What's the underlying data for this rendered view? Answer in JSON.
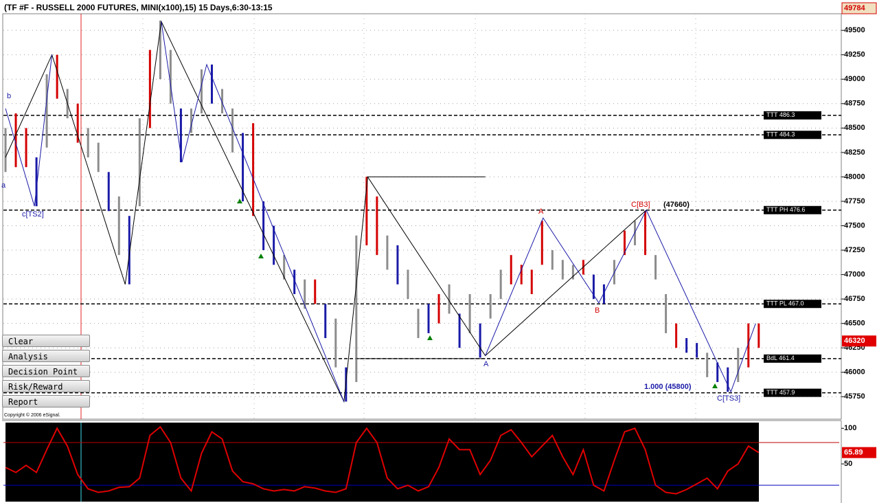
{
  "header": {
    "title": "(TF #F - RUSSELL 2000 FUTURES, MINI(x100),15) 15 Days,6:30-13:15",
    "copyright": "Copyright © 2006 eSignal."
  },
  "buttons": [
    "Clear",
    "Analysis",
    "Decision Point",
    "Risk/Reward",
    "Report"
  ],
  "chart_data": [
    {
      "type": "ohlc",
      "high": [
        48500,
        48650,
        48500,
        48200,
        49050,
        49250,
        48900,
        48750,
        48500,
        48350,
        48050,
        47800,
        47600,
        48600,
        49300,
        49600,
        49300,
        48700,
        48700,
        49100,
        49150,
        48900,
        48700,
        48450,
        48550,
        47750,
        47500,
        47200,
        47050,
        46950,
        46950,
        46700,
        46550,
        46050,
        47400,
        48000,
        47800,
        47400,
        47300,
        47050,
        46650,
        46700,
        46800,
        46900,
        46600,
        46800,
        46500,
        46800,
        47050,
        47200,
        47100,
        47050,
        47550,
        47250,
        47150,
        47100,
        47150,
        47000,
        46900,
        47150,
        47450,
        47550,
        47650,
        47200,
        46800,
        46500,
        46350,
        46300,
        46200,
        46100,
        46050,
        46250,
        46500,
        46500
      ],
      "low": [
        48050,
        48100,
        48100,
        47700,
        48300,
        48800,
        48600,
        48350,
        48200,
        48050,
        47650,
        47200,
        46900,
        47700,
        48500,
        49000,
        48750,
        48150,
        48450,
        48650,
        48750,
        48650,
        48250,
        47750,
        47600,
        47250,
        47100,
        46950,
        46800,
        46650,
        46700,
        46350,
        46050,
        45700,
        45900,
        47300,
        47200,
        47050,
        46900,
        46750,
        46350,
        46400,
        46500,
        46600,
        46250,
        46400,
        46150,
        46550,
        46750,
        46900,
        46900,
        46800,
        47100,
        47050,
        46950,
        46950,
        47000,
        46750,
        46700,
        46900,
        47200,
        47300,
        47200,
        46950,
        46400,
        46250,
        46200,
        46150,
        45950,
        45900,
        45800,
        45900,
        46050,
        46250
      ],
      "colors": [
        "#8c8c8c",
        "#d40000",
        "#d40000",
        "#1a1aa8",
        "#8c8c8c",
        "#d40000",
        "#8c8c8c",
        "#d40000",
        "#8c8c8c",
        "#8c8c8c",
        "#1a1aa8",
        "#8c8c8c",
        "#1a1aa8",
        "#8c8c8c",
        "#d40000",
        "#8c8c8c",
        "#8c8c8c",
        "#1a1aa8",
        "#8c8c8c",
        "#8c8c8c",
        "#1a1aa8",
        "#8c8c8c",
        "#8c8c8c",
        "#1a1aa8",
        "#d40000",
        "#1a1aa8",
        "#1a1aa8",
        "#8c8c8c",
        "#1a1aa8",
        "#8c8c8c",
        "#d40000",
        "#1a1aa8",
        "#8c8c8c",
        "#1a1aa8",
        "#8c8c8c",
        "#d40000",
        "#d40000",
        "#8c8c8c",
        "#1a1aa8",
        "#8c8c8c",
        "#8c8c8c",
        "#1a1aa8",
        "#d40000",
        "#8c8c8c",
        "#1a1aa8",
        "#8c8c8c",
        "#1a1aa8",
        "#8c8c8c",
        "#8c8c8c",
        "#d40000",
        "#d40000",
        "#d40000",
        "#d40000",
        "#8c8c8c",
        "#8c8c8c",
        "#8c8c8c",
        "#d40000",
        "#1a1aa8",
        "#1a1aa8",
        "#8c8c8c",
        "#d40000",
        "#8c8c8c",
        "#d40000",
        "#8c8c8c",
        "#8c8c8c",
        "#d40000",
        "#1a1aa8",
        "#1a1aa8",
        "#8c8c8c",
        "#1a1aa8",
        "#1a1aa8",
        "#8c8c8c",
        "#d40000",
        "#d40000"
      ],
      "xlim": [
        -0.2,
        81
      ],
      "ylim": [
        45520,
        49670
      ],
      "yticks": [
        45750,
        46000,
        46250,
        46500,
        46750,
        47000,
        47250,
        47500,
        47750,
        48000,
        48250,
        48500,
        48750,
        49000,
        49250,
        49500
      ],
      "grid": true,
      "lines": [
        {
          "color": "#000000",
          "points": [
            [
              0,
              48200
            ],
            [
              4.5,
              49250
            ],
            [
              11.6,
              46900
            ],
            [
              15.1,
              49590
            ],
            [
              32.8,
              45700
            ],
            [
              35.1,
              48000
            ],
            [
              46.5,
              46170
            ],
            [
              62.1,
              47660
            ]
          ]
        },
        {
          "color": "#000000",
          "points": [
            [
              35.1,
              48000
            ],
            [
              46.5,
              48000
            ]
          ]
        },
        {
          "color": "#000000",
          "points": [
            [
              34,
              46140
            ],
            [
              46.5,
              46140
            ]
          ]
        },
        {
          "color": "#1a1aa8",
          "points": [
            [
              0,
              48700
            ],
            [
              2.8,
              47700
            ],
            [
              4.5,
              49250
            ]
          ]
        },
        {
          "color": "#1a1aa8",
          "points": [
            [
              15.1,
              49590
            ],
            [
              17.1,
              48150
            ],
            [
              19.5,
              49150
            ],
            [
              32.8,
              45700
            ]
          ]
        },
        {
          "color": "#1a1aa8",
          "points": [
            [
              46.5,
              46170
            ],
            [
              52.1,
              47580
            ],
            [
              57.5,
              46710
            ],
            [
              62.1,
              47660
            ],
            [
              70.3,
              45800
            ],
            [
              72.7,
              46500
            ]
          ]
        }
      ],
      "levels": [
        {
          "value": 48630,
          "label": "TTT 486.3"
        },
        {
          "value": 48430,
          "label": "TTT 484.3"
        },
        {
          "value": 47660,
          "label": "TTT PH 476.6"
        },
        {
          "value": 46700,
          "label": "TTT PL 467.0"
        },
        {
          "value": 46140,
          "label": "BdL 461.4"
        },
        {
          "value": 45790,
          "label": "TTT 457.9"
        }
      ],
      "annotations": [
        "b",
        "a",
        "c[TS2]",
        "A",
        "A",
        "B",
        "C[B3]",
        "(47660)",
        "1.000 (45800)",
        "C[TS3]"
      ],
      "top_price": 49784,
      "last_price": 46320
    },
    {
      "type": "line",
      "values": [
        45,
        38,
        48,
        38,
        70,
        100,
        75,
        35,
        15,
        10,
        12,
        17,
        18,
        30,
        90,
        102,
        80,
        30,
        12,
        65,
        95,
        85,
        40,
        25,
        22,
        15,
        12,
        14,
        12,
        18,
        16,
        12,
        10,
        15,
        80,
        100,
        80,
        30,
        15,
        20,
        12,
        18,
        45,
        85,
        70,
        70,
        35,
        55,
        90,
        98,
        80,
        60,
        75,
        90,
        60,
        35,
        70,
        20,
        12,
        55,
        95,
        100,
        70,
        20,
        10,
        8,
        14,
        22,
        30,
        15,
        40,
        50,
        75,
        65.89
      ],
      "color": "#e00000",
      "ylim": [
        -3,
        108
      ],
      "yticks": [
        100,
        50
      ],
      "levels": [
        {
          "value": 80,
          "color": "#c00000"
        },
        {
          "value": 20,
          "color": "#0000c0"
        }
      ]
    }
  ]
}
